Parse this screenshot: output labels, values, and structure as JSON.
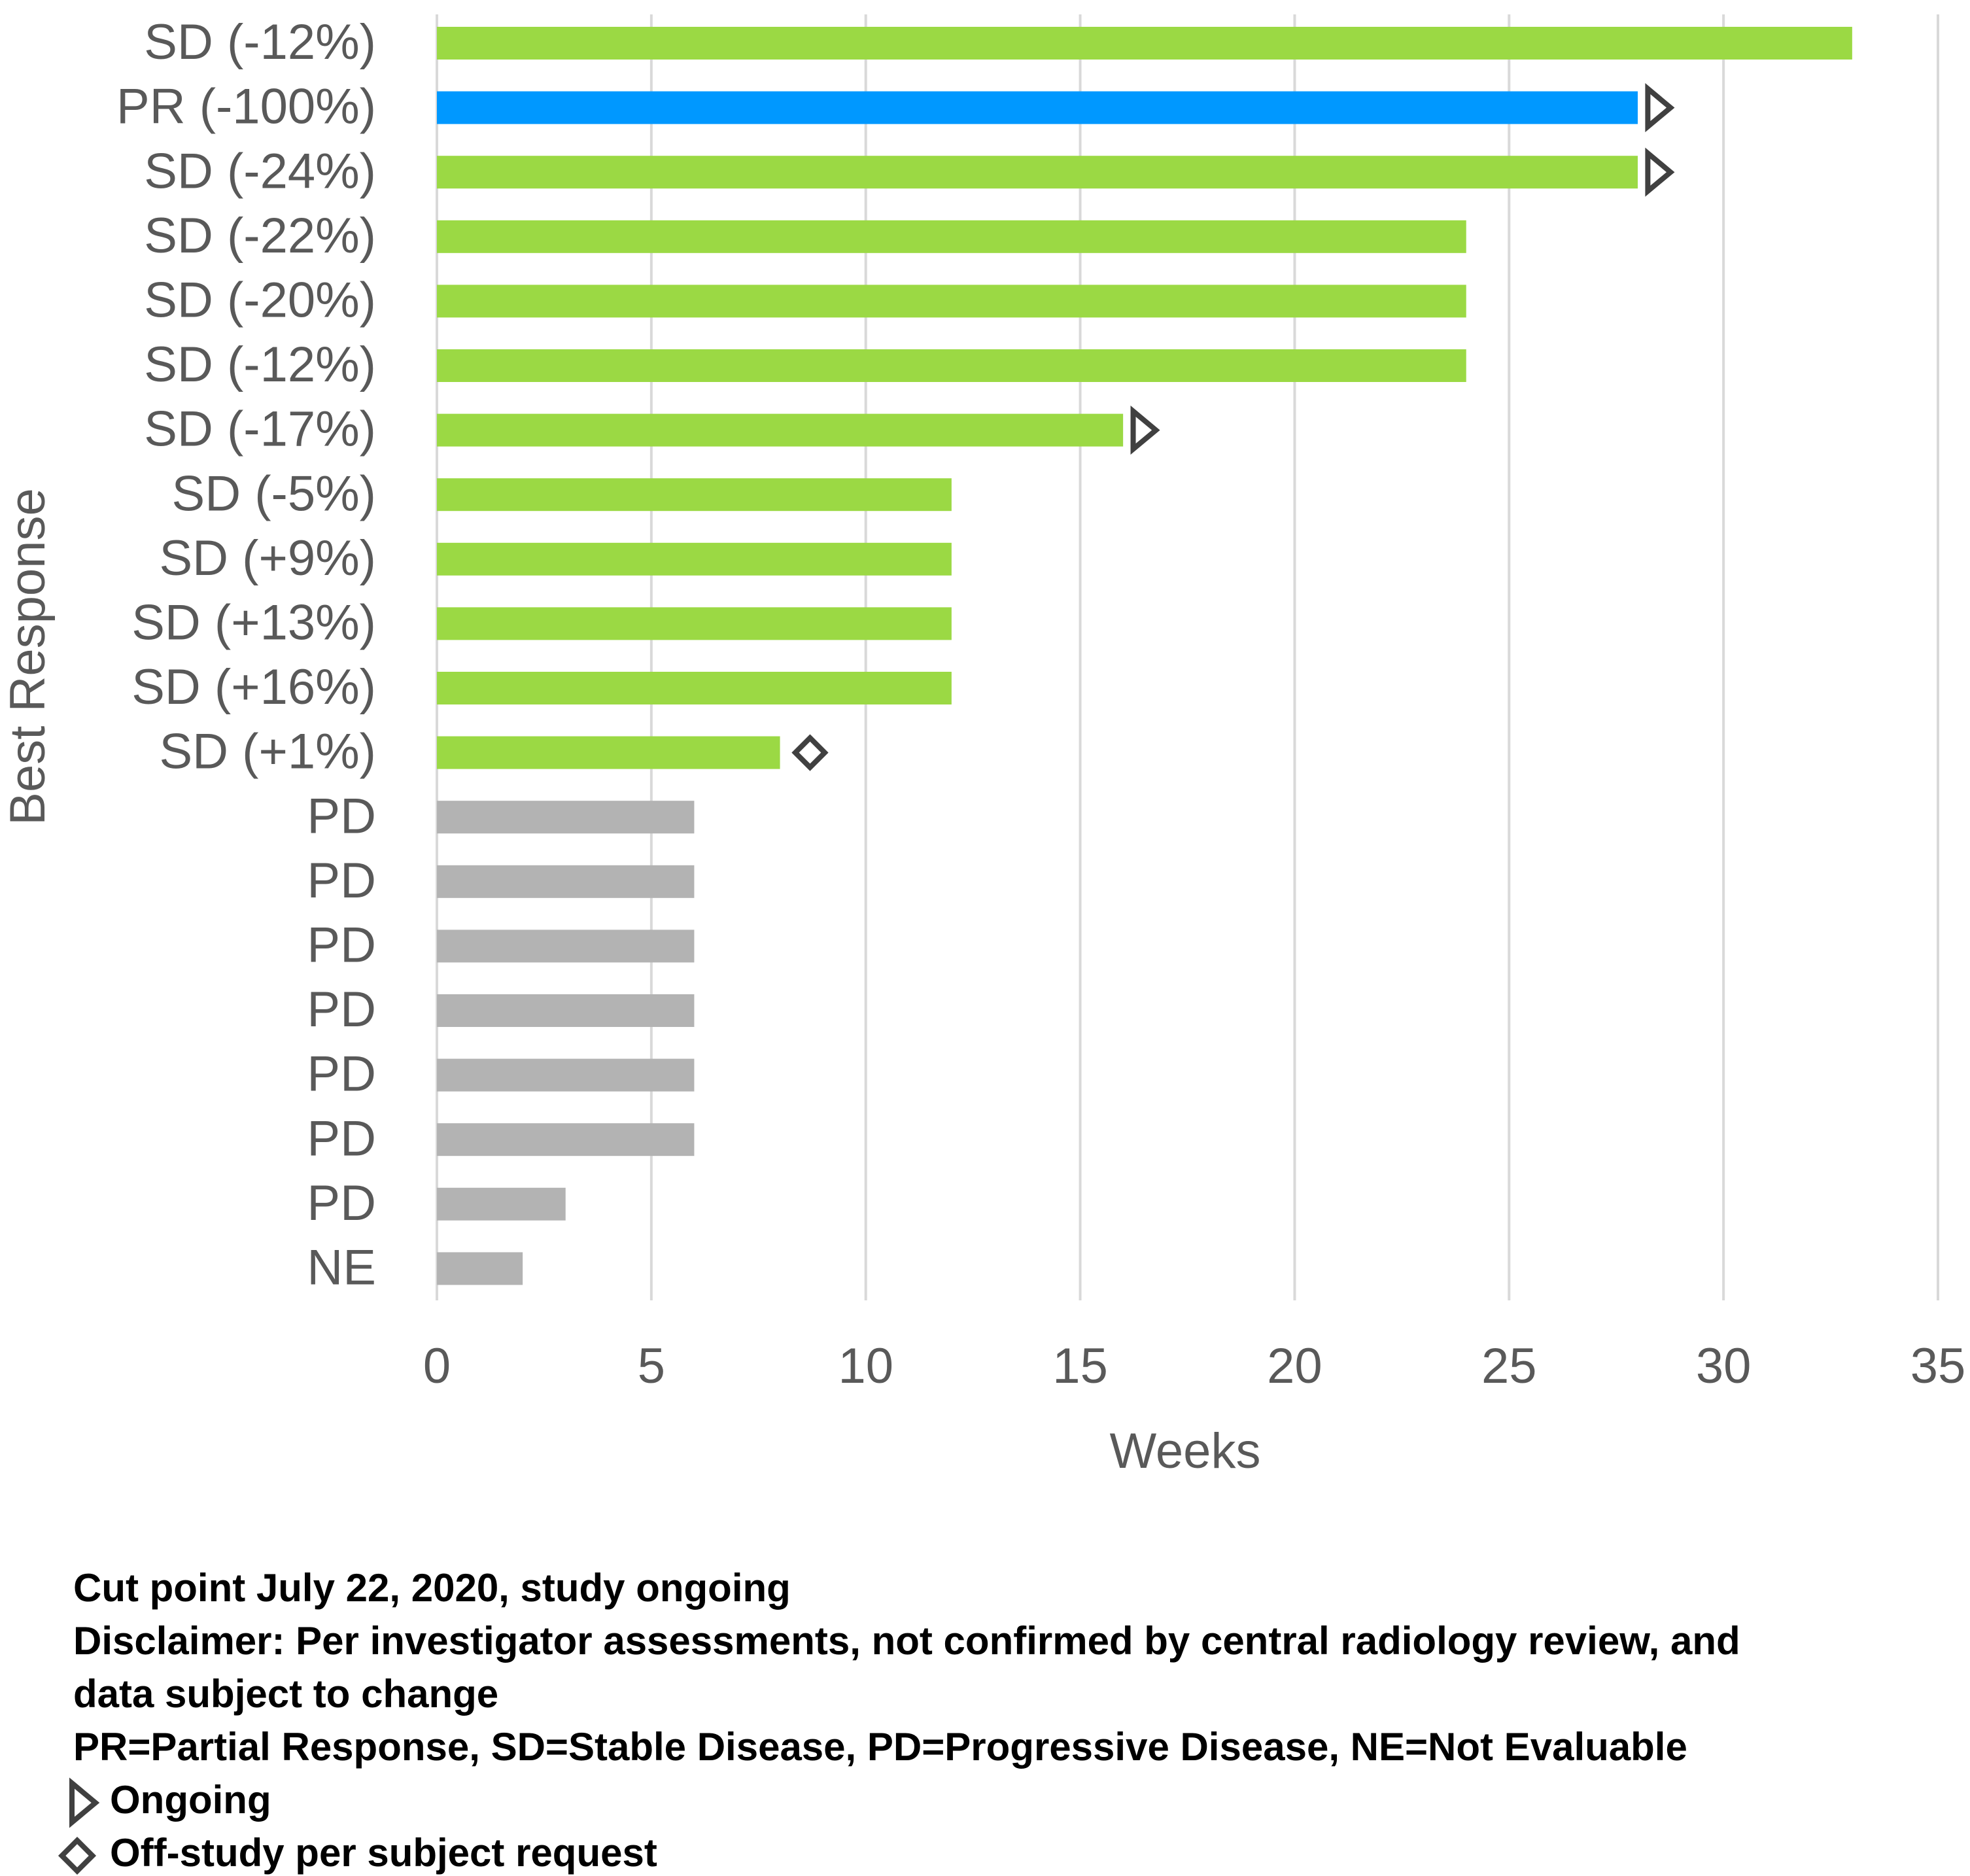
{
  "chart_data": {
    "type": "bar",
    "orientation": "horizontal",
    "ylabel": "Best Response",
    "xlabel": "Weeks",
    "categories": [
      "SD (-12%)",
      "PR (-100%)",
      "SD (-24%)",
      "SD (-22%)",
      "SD (-20%)",
      "SD (-12%)",
      "SD (-17%)",
      "SD (-5%)",
      "SD (+9%)",
      "SD (+13%)",
      "SD (+16%)",
      "SD (+1%)",
      "PD",
      "PD",
      "PD",
      "PD",
      "PD",
      "PD",
      "PD",
      "NE"
    ],
    "values": [
      33,
      28,
      28,
      24,
      24,
      24,
      16,
      12,
      12,
      12,
      12,
      8,
      6,
      6,
      6,
      6,
      6,
      6,
      3,
      2
    ],
    "colors": [
      "#9bd944",
      "#0098ff",
      "#9bd944",
      "#9bd944",
      "#9bd944",
      "#9bd944",
      "#9bd944",
      "#9bd944",
      "#9bd944",
      "#9bd944",
      "#9bd944",
      "#9bd944",
      "#b3b3b3",
      "#b3b3b3",
      "#b3b3b3",
      "#b3b3b3",
      "#b3b3b3",
      "#b3b3b3",
      "#b3b3b3",
      "#b3b3b3"
    ],
    "markers": [
      {
        "name": "Ongoing",
        "shape": "triangle",
        "color": "#404040",
        "values": [
          null,
          28.5,
          28.5,
          null,
          null,
          null,
          16.5,
          null,
          null,
          null,
          null,
          null,
          null,
          null,
          null,
          null,
          null,
          null,
          null,
          null
        ]
      },
      {
        "name": "Off-study per subject request",
        "shape": "diamond",
        "color": "#404040",
        "values": [
          null,
          null,
          null,
          null,
          null,
          null,
          null,
          null,
          null,
          null,
          null,
          8.7,
          null,
          null,
          null,
          null,
          null,
          null,
          null,
          null
        ]
      }
    ],
    "xlim": [
      0,
      35
    ],
    "xticks": [
      0,
      5,
      10,
      15,
      20,
      25,
      30,
      35
    ],
    "grid": true,
    "notes": [
      "Cut point July 22, 2020, study ongoing",
      "Disclaimer: Per investigator assessments, not confirmed by central radiology review, and",
      "data subject to change",
      "PR=Partial Response, SD=Stable Disease, PD=Progressive Disease, NE=Not Evaluable"
    ]
  }
}
